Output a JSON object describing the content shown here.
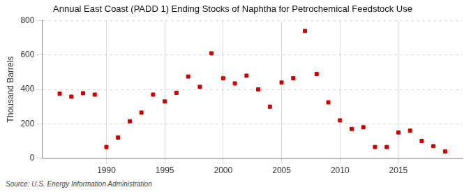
{
  "chart_data": {
    "type": "scatter",
    "title": "Annual East Coast (PADD 1) Ending Stocks of Naphtha for Petrochemical Feedstock Use",
    "ylabel": "Thousand Barrels",
    "source": "Source: U.S. Energy Information Administration",
    "x": [
      1986,
      1987,
      1988,
      1989,
      1990,
      1991,
      1992,
      1993,
      1994,
      1995,
      1996,
      1997,
      1998,
      1999,
      2000,
      2001,
      2002,
      2003,
      2004,
      2005,
      2006,
      2007,
      2008,
      2009,
      2010,
      2011,
      2012,
      2013,
      2014,
      2015,
      2016,
      2017,
      2018,
      2019
    ],
    "values": [
      375,
      358,
      378,
      370,
      65,
      120,
      215,
      265,
      370,
      330,
      380,
      475,
      415,
      610,
      465,
      435,
      480,
      400,
      300,
      440,
      465,
      740,
      490,
      325,
      220,
      170,
      180,
      65,
      65,
      150,
      160,
      100,
      70,
      40
    ],
    "color": "#cc0000",
    "marker": "square",
    "xlim": [
      1984.5,
      2020.5
    ],
    "xticks": [
      1990,
      1995,
      2000,
      2005,
      2010,
      2015
    ],
    "ylim": [
      0,
      800
    ],
    "yticks": [
      0,
      200,
      400,
      600,
      800
    ],
    "grid": true
  }
}
